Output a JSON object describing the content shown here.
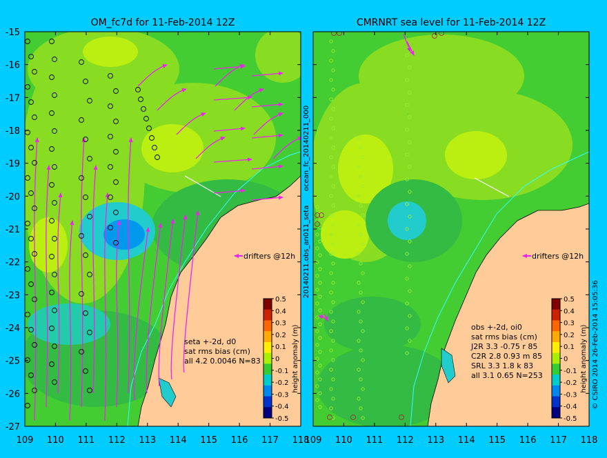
{
  "left_panel": {
    "title": "OM_fc7d for 11-Feb-2014 12Z",
    "stats": [
      "seta +-2d, d0",
      "sat rms bias (cm)",
      "all 4.2 0.0046 N=83"
    ],
    "legend_label": "drifters @12h"
  },
  "right_panel": {
    "title": "CMRNRT sea level  for 11-Feb-2014 12Z",
    "stats": [
      "obs +-2d, oi0",
      "sat rms bias (cm)",
      "J2R   3.3 -0.75 r 85",
      "C2R   2.8 0.93 m 85",
      "SRL    3.3 1.8 k 83",
      "all    3.1 0.65 N=253"
    ],
    "legend_label": "drifters @12h"
  },
  "axes": {
    "x_ticks": [
      "109",
      "110",
      "111",
      "112",
      "113",
      "114",
      "115",
      "116",
      "117",
      "118"
    ],
    "y_ticks": [
      "-15",
      "-16",
      "-17",
      "-18",
      "-19",
      "-20",
      "-21",
      "-22",
      "-23",
      "-24",
      "-25",
      "-26",
      "-27"
    ],
    "lon_range": [
      109,
      118
    ],
    "lat_range": [
      -27,
      -15
    ]
  },
  "colorbar": {
    "label": "height anomaly (m)",
    "ticks": [
      "0.5",
      "0.4",
      "0.3",
      "0.2",
      "0.1",
      "0",
      "-0.1",
      "-0.2",
      "-0.3",
      "-0.4",
      "-0.5"
    ],
    "colors": [
      "#7f0000",
      "#cc2200",
      "#ff6600",
      "#ffaa00",
      "#ffee00",
      "#aaee00",
      "#33cc33",
      "#00cccc",
      "#0088ee",
      "#0033cc",
      "#000080"
    ]
  },
  "side_labels": {
    "file_top": "ocean_fc_20140211_000",
    "file_bottom": "20140211.obs_an011_seta",
    "credit": "© CSIRO 2014   26-Feb-2014 15:05:36"
  },
  "colors": {
    "background": "#00ccff",
    "land": "#ffcc99",
    "sea_base": "#44cc33",
    "drifter": "#ee22ee"
  }
}
